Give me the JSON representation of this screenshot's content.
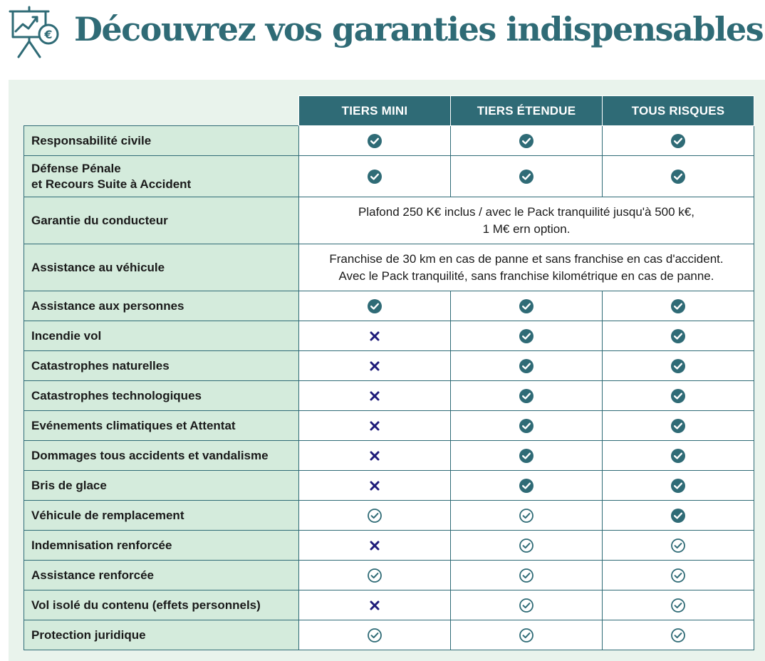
{
  "page": {
    "title": "Découvrez vos garanties indispensables"
  },
  "colors": {
    "brand": "#2f6b76",
    "label_bg": "#d4ebdc",
    "panel_bg": "#e9f3ec",
    "cross": "#1f1c7a"
  },
  "table": {
    "columns": [
      "TIERS MINI",
      "TIERS ÉTENDUE",
      "TOUS RISQUES"
    ],
    "rows": [
      {
        "label_lines": [
          "Responsabilité civile"
        ],
        "cells": [
          "check-filled",
          "check-filled",
          "check-filled"
        ]
      },
      {
        "label_lines": [
          "Défense Pénale",
          "et Recours Suite à Accident"
        ],
        "cells": [
          "check-filled",
          "check-filled",
          "check-filled"
        ]
      },
      {
        "label_lines": [
          "Garantie du conducteur"
        ],
        "note": "Plafond 250 K€ inclus / avec le Pack tranquilité jusqu'à 500 k€,\n1 M€ ern option."
      },
      {
        "label_lines": [
          "Assistance au véhicule"
        ],
        "note": "Franchise de 30 km en cas de panne et sans franchise en cas d'accident.\nAvec le Pack tranquilité, sans franchise kilométrique en cas de panne."
      },
      {
        "label_lines": [
          "Assistance aux personnes"
        ],
        "cells": [
          "check-filled",
          "check-filled",
          "check-filled"
        ]
      },
      {
        "label_lines": [
          "Incendie vol"
        ],
        "cells": [
          "cross",
          "check-filled",
          "check-filled"
        ]
      },
      {
        "label_lines": [
          "Catastrophes naturelles"
        ],
        "cells": [
          "cross",
          "check-filled",
          "check-filled"
        ]
      },
      {
        "label_lines": [
          "Catastrophes technologiques"
        ],
        "cells": [
          "cross",
          "check-filled",
          "check-filled"
        ]
      },
      {
        "label_lines": [
          "Evénements climatiques et Attentat"
        ],
        "cells": [
          "cross",
          "check-filled",
          "check-filled"
        ]
      },
      {
        "label_lines": [
          "Dommages tous accidents et vandalisme"
        ],
        "cells": [
          "cross",
          "check-filled",
          "check-filled"
        ]
      },
      {
        "label_lines": [
          "Bris de glace"
        ],
        "cells": [
          "cross",
          "check-filled",
          "check-filled"
        ]
      },
      {
        "label_lines": [
          "Véhicule de remplacement"
        ],
        "cells": [
          "check-outline",
          "check-outline",
          "check-filled"
        ]
      },
      {
        "label_lines": [
          "Indemnisation renforcée"
        ],
        "cells": [
          "cross",
          "check-outline",
          "check-outline"
        ]
      },
      {
        "label_lines": [
          "Assistance renforcée"
        ],
        "cells": [
          "check-outline",
          "check-outline",
          "check-outline"
        ]
      },
      {
        "label_lines": [
          "Vol isolé du contenu (effets personnels)"
        ],
        "cells": [
          "cross",
          "check-outline",
          "check-outline"
        ]
      },
      {
        "label_lines": [
          "Protection juridique"
        ],
        "cells": [
          "check-outline",
          "check-outline",
          "check-outline"
        ]
      }
    ]
  }
}
